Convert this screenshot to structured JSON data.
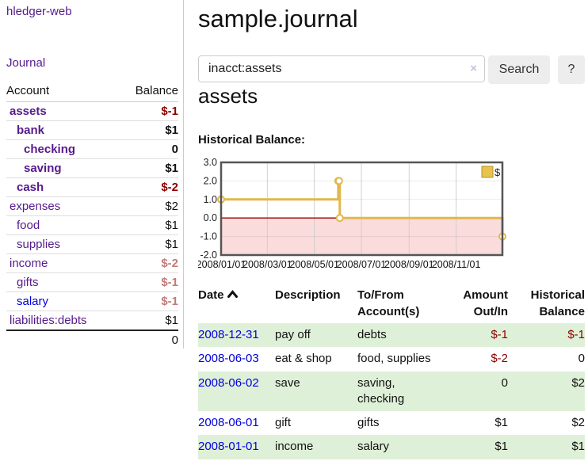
{
  "app": {
    "name": "hledger-web"
  },
  "sidebar": {
    "journal_link": "Journal",
    "table": {
      "account_header": "Account",
      "balance_header": "Balance",
      "rows": [
        {
          "account": "assets",
          "balance": "$-1",
          "depth": 1,
          "bold": true,
          "balance_style": "neg",
          "link_style": "purple"
        },
        {
          "account": "bank",
          "balance": "$1",
          "depth": 2,
          "bold": true,
          "balance_style": "plain-bold",
          "link_style": "purple"
        },
        {
          "account": "checking",
          "balance": "0",
          "depth": 3,
          "bold": true,
          "balance_style": "plain-bold",
          "link_style": "purple"
        },
        {
          "account": "saving",
          "balance": "$1",
          "depth": 3,
          "bold": true,
          "balance_style": "plain-bold",
          "link_style": "purple"
        },
        {
          "account": "cash",
          "balance": "$-2",
          "depth": 2,
          "bold": true,
          "balance_style": "neg",
          "link_style": "purple"
        },
        {
          "account": "expenses",
          "balance": "$2",
          "depth": 1,
          "bold": false,
          "balance_style": "plain",
          "link_style": "purple"
        },
        {
          "account": "food",
          "balance": "$1",
          "depth": 2,
          "bold": false,
          "balance_style": "plain",
          "link_style": "purple"
        },
        {
          "account": "supplies",
          "balance": "$1",
          "depth": 2,
          "bold": false,
          "balance_style": "plain",
          "link_style": "purple"
        },
        {
          "account": "income",
          "balance": "$-2",
          "depth": 1,
          "bold": false,
          "balance_style": "neg-muted",
          "link_style": "purple"
        },
        {
          "account": "gifts",
          "balance": "$-1",
          "depth": 2,
          "bold": false,
          "balance_style": "neg-muted",
          "link_style": "purple"
        },
        {
          "account": "salary",
          "balance": "$-1",
          "depth": 2,
          "bold": false,
          "balance_style": "neg-muted",
          "link_style": "blue"
        },
        {
          "account": "liabilities:debts",
          "balance": "$1",
          "depth": 1,
          "bold": false,
          "balance_style": "plain",
          "link_style": "purple"
        }
      ],
      "total": "0"
    }
  },
  "main": {
    "title": "sample.journal",
    "search": {
      "value": "inacct:assets",
      "clear_icon": "×",
      "search_button": "Search",
      "help_button": "?"
    },
    "account_heading": "assets",
    "chart_label": "Historical Balance:"
  },
  "chart_data": {
    "type": "line",
    "step": true,
    "title": "Historical Balance",
    "legend": "$",
    "ylim": [
      -2,
      3
    ],
    "yticks": [
      "3.0",
      "2.0",
      "1.0",
      "0.0",
      "-1.0",
      "-2.0"
    ],
    "xticks": [
      "2008/01/01",
      "2008/03/01",
      "2008/05/01",
      "2008/07/01",
      "2008/09/01",
      "2008/11/01"
    ],
    "x_range": [
      "2008-01-01",
      "2008-12-31"
    ],
    "series": [
      {
        "name": "$",
        "color": "#e2b84a",
        "points": [
          {
            "date": "2008-01-01",
            "value": 1
          },
          {
            "date": "2008-06-01",
            "value": 2
          },
          {
            "date": "2008-06-02",
            "value": 2
          },
          {
            "date": "2008-06-03",
            "value": 0
          },
          {
            "date": "2008-12-31",
            "value": -1
          }
        ]
      }
    ],
    "colors": {
      "negative_region_fill": "#fbdcdc",
      "zero_line": "#990000",
      "grid": "#cccccc",
      "plot_border": "#555555",
      "marker_fill": "#ffffff",
      "legend_square_fill": "#e8c24d",
      "legend_square_border": "#b8922e"
    }
  },
  "register": {
    "headers": {
      "date": "Date",
      "description": "Description",
      "accounts": "To/From Account(s)",
      "amount": "Amount Out/In",
      "balance": "Historical Balance"
    },
    "sort_icon": "chevron-up",
    "rows": [
      {
        "date": "2008-12-31",
        "description": "pay off",
        "accounts": "debts",
        "amount": "$-1",
        "amount_negative": true,
        "balance": "$-1",
        "balance_negative": true,
        "green": true
      },
      {
        "date": "2008-06-03",
        "description": "eat & shop",
        "accounts": "food, supplies",
        "amount": "$-2",
        "amount_negative": true,
        "balance": "0",
        "balance_negative": false,
        "green": false
      },
      {
        "date": "2008-06-02",
        "description": "save",
        "accounts": "saving, checking",
        "amount": "0",
        "amount_negative": false,
        "balance": "$2",
        "balance_negative": false,
        "green": true
      },
      {
        "date": "2008-06-01",
        "description": "gift",
        "accounts": "gifts",
        "amount": "$1",
        "amount_negative": false,
        "balance": "$2",
        "balance_negative": false,
        "green": false
      },
      {
        "date": "2008-01-01",
        "description": "income",
        "accounts": "salary",
        "amount": "$1",
        "amount_negative": false,
        "balance": "$1",
        "balance_negative": false,
        "green": true
      }
    ]
  }
}
